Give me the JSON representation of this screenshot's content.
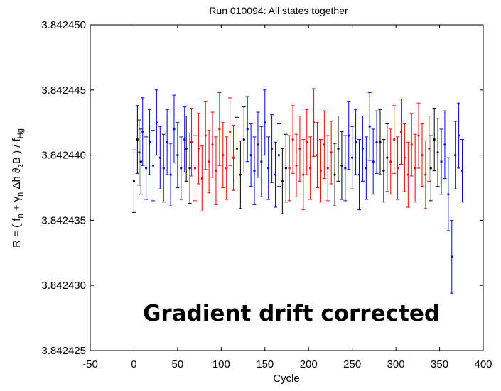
{
  "chart_data": {
    "type": "scatter",
    "title": "Run 010094: All states together",
    "xlabel": "Cycle",
    "ylabel": {
      "prefix": "R = ( f",
      "sub_n1": "n",
      "plus": " + γ",
      "sub_n2": "n",
      "mid": " Δh ∂",
      "sub_z": "z",
      "rest": "B ) / f",
      "sub_hg": "Hg"
    },
    "annotation": "Gradient drift corrected",
    "xlim": [
      -50,
      400
    ],
    "ylim": [
      3.842425,
      3.84245
    ],
    "xticks": [
      -50,
      0,
      50,
      100,
      150,
      200,
      250,
      300,
      350,
      400
    ],
    "xtick_labels": [
      "-50",
      "0",
      "50",
      "100",
      "150",
      "200",
      "250",
      "300",
      "350",
      "400"
    ],
    "yticks": [
      3.842425,
      3.84243,
      3.842435,
      3.84244,
      3.842445,
      3.84245
    ],
    "ytick_labels": [
      "3.842425",
      "3.842430",
      "3.842435",
      "3.842440",
      "3.842445",
      "3.842450"
    ],
    "grid": false,
    "errorbars": true,
    "colors": {
      "black": "#000000",
      "blue": "#0000ff",
      "red": "#ff0000"
    },
    "series": [
      {
        "color": "#000000",
        "x": [
          0,
          4,
          8,
          60,
          64,
          118,
          122,
          126,
          170,
          174,
          230,
          234,
          238,
          282,
          286,
          290,
          340,
          344,
          348
        ],
        "y": [
          3.842438,
          3.8424412,
          3.8424395,
          3.8424405,
          3.842439,
          3.8424405,
          3.8424385,
          3.8424412,
          3.842438,
          3.842439,
          3.8424385,
          3.8424405,
          3.8424392,
          3.842441,
          3.8424388,
          3.8424398,
          3.842439,
          3.8424412,
          3.8424402
        ],
        "err": [
          2.4e-06,
          2.6e-06,
          2.5e-06,
          2.5e-06,
          2.7e-06,
          2.4e-06,
          2.6e-06,
          2.5e-06,
          2.5e-06,
          2.6e-06,
          2.4e-06,
          2.5e-06,
          2.6e-06,
          2.5e-06,
          2.4e-06,
          2.6e-06,
          2.5e-06,
          2.4e-06,
          2.6e-06
        ]
      },
      {
        "color": "#0000ff",
        "x": [
          6,
          10,
          14,
          18,
          22,
          26,
          30,
          34,
          38,
          42,
          46,
          50,
          54,
          58,
          130,
          134,
          138,
          142,
          146,
          150,
          154,
          158,
          162,
          166,
          242,
          246,
          250,
          254,
          258,
          262,
          266,
          270,
          274,
          278,
          352,
          356,
          360,
          364,
          368,
          372,
          376
        ],
        "y": [
          3.8424402,
          3.8424418,
          3.842439,
          3.842441,
          3.8424392,
          3.8424425,
          3.8424398,
          3.842439,
          3.842441,
          3.8424385,
          3.842442,
          3.84244,
          3.842439,
          3.8424412,
          3.842442,
          3.84244,
          3.8424388,
          3.8424408,
          3.8424395,
          3.8424425,
          3.842439,
          3.8424405,
          3.8424385,
          3.84244,
          3.842439,
          3.8424415,
          3.8424398,
          3.842441,
          3.8424385,
          3.8424405,
          3.842439,
          3.8424422,
          3.8424395,
          3.842441,
          3.8424395,
          3.8424408,
          3.842437,
          3.8424322,
          3.84244,
          3.8424415,
          3.8424388
        ],
        "err": [
          2.5e-06,
          2.6e-06,
          2.4e-06,
          2.5e-06,
          2.7e-06,
          2.5e-06,
          2.4e-06,
          2.6e-06,
          2.5e-06,
          2.4e-06,
          2.6e-06,
          2.5e-06,
          2.4e-06,
          2.5e-06,
          2.5e-06,
          2.4e-06,
          2.6e-06,
          2.5e-06,
          2.7e-06,
          2.5e-06,
          2.4e-06,
          2.6e-06,
          2.5e-06,
          2.4e-06,
          2.5e-06,
          2.6e-06,
          2.4e-06,
          2.5e-06,
          2.7e-06,
          2.5e-06,
          2.4e-06,
          2.6e-06,
          2.5e-06,
          2.4e-06,
          2.5e-06,
          2.6e-06,
          2.8e-06,
          2.8e-06,
          2.6e-06,
          2.5e-06,
          2.4e-06
        ]
      },
      {
        "color": "#ff0000",
        "x": [
          66,
          70,
          74,
          78,
          82,
          86,
          90,
          94,
          98,
          102,
          106,
          110,
          114,
          178,
          182,
          186,
          190,
          194,
          198,
          202,
          206,
          210,
          214,
          218,
          222,
          226,
          294,
          298,
          302,
          306,
          310,
          314,
          318,
          322,
          326,
          330,
          334,
          338
        ],
        "y": [
          3.842441,
          3.842439,
          3.8424405,
          3.8424382,
          3.8424415,
          3.8424395,
          3.8424408,
          3.8424388,
          3.842442,
          3.84244,
          3.842439,
          3.8424418,
          3.8424398,
          3.842439,
          3.8424412,
          3.8424392,
          3.8424405,
          3.8424385,
          3.842441,
          3.842439,
          3.8424425,
          3.84244,
          3.8424388,
          3.8424408,
          3.842439,
          3.8424402,
          3.8424395,
          3.8424412,
          3.842439,
          3.8424418,
          3.8424398,
          3.8424385,
          3.8424408,
          3.842439,
          3.8424415,
          3.84244,
          3.8424385,
          3.8424405
        ],
        "err": [
          2.6e-06,
          2.5e-06,
          2.7e-06,
          2.5e-06,
          2.6e-06,
          2.4e-06,
          2.5e-06,
          2.6e-06,
          2.8e-06,
          2.5e-06,
          2.4e-06,
          2.6e-06,
          2.5e-06,
          2.5e-06,
          2.6e-06,
          2.4e-06,
          2.5e-06,
          2.7e-06,
          2.5e-06,
          2.4e-06,
          2.6e-06,
          2.5e-06,
          2.4e-06,
          2.6e-06,
          2.5e-06,
          2.4e-06,
          2.5e-06,
          2.6e-06,
          2.4e-06,
          2.5e-06,
          2.6e-06,
          2.5e-06,
          2.4e-06,
          2.6e-06,
          2.5e-06,
          2.4e-06,
          2.6e-06,
          2.5e-06
        ]
      }
    ]
  }
}
